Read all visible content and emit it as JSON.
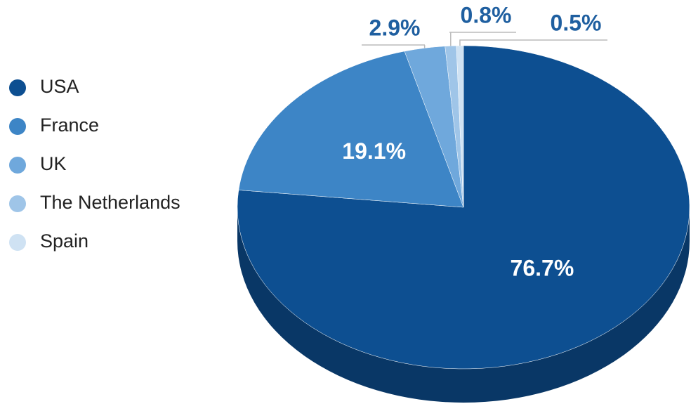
{
  "chart_data": {
    "type": "pie3d",
    "categories": [
      "USA",
      "France",
      "UK",
      "The Netherlands",
      "Spain"
    ],
    "values": [
      76.7,
      19.1,
      2.9,
      0.8,
      0.5
    ],
    "value_labels": [
      "76.7%",
      "19.1%",
      "2.9%",
      "0.8%",
      "0.5%"
    ],
    "colors": [
      "#0d4f91",
      "#3d85c6",
      "#6fa8dc",
      "#9fc5e8",
      "#cfe2f3"
    ],
    "legend": "left"
  }
}
